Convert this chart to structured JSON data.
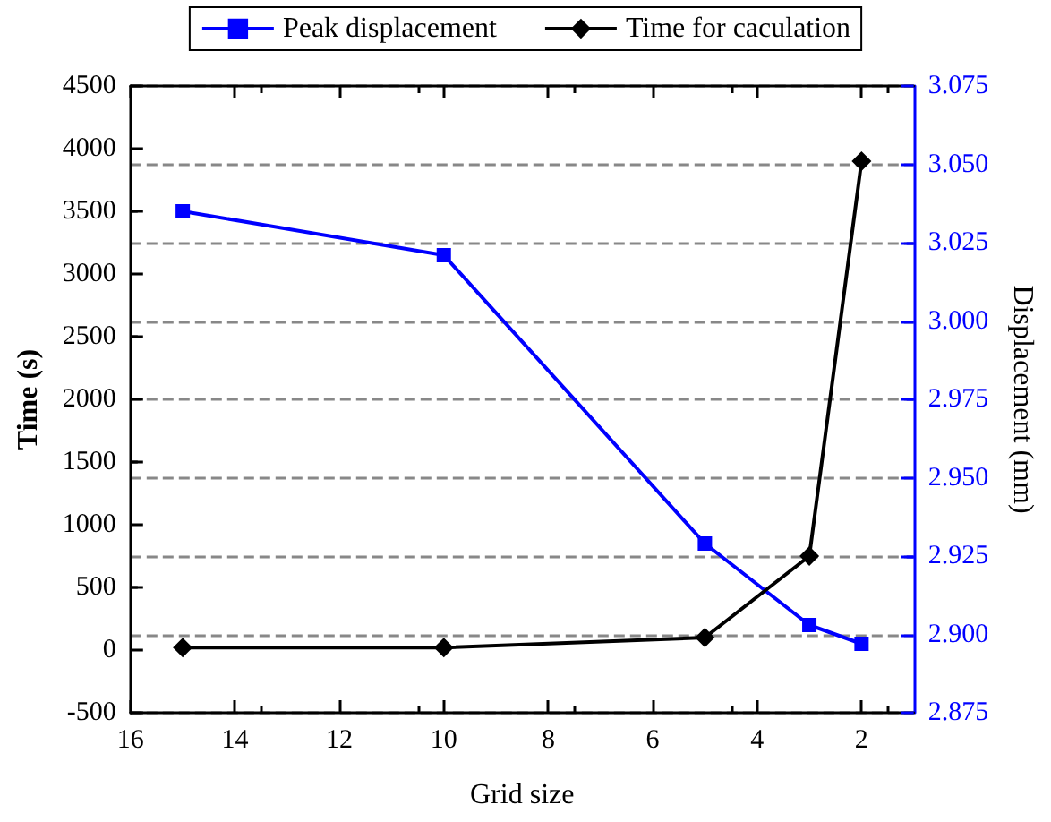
{
  "chart_data": {
    "type": "line",
    "xlabel": "Grid size",
    "ylabel": "Time (s)",
    "y2label": "Displacement (mm)",
    "x": [
      15,
      10,
      5,
      3,
      2
    ],
    "series": [
      {
        "name": "Peak displacement",
        "color": "#0000ff",
        "axis": "y2",
        "marker": "square",
        "values": [
          3.035,
          3.021,
          2.929,
          2.903,
          2.897
        ]
      },
      {
        "name": "Time for caculation",
        "color": "#000000",
        "marker": "diamond",
        "values": [
          20,
          20,
          100,
          750,
          3900
        ]
      }
    ],
    "xlim": [
      16,
      1
    ],
    "xticks": [
      16,
      14,
      12,
      10,
      8,
      6,
      4,
      2
    ],
    "ylim": [
      -500,
      4500
    ],
    "yticks": [
      -500,
      0,
      500,
      1000,
      1500,
      2000,
      2500,
      3000,
      3500,
      4000,
      4500
    ],
    "y2lim": [
      2.875,
      3.075
    ],
    "y2ticks": [
      {
        "value": 2.875,
        "label": "2.875"
      },
      {
        "value": 2.9,
        "label": "2.900"
      },
      {
        "value": 2.925,
        "label": "2.925"
      },
      {
        "value": 2.95,
        "label": "2.950"
      },
      {
        "value": 2.975,
        "label": "2.975"
      },
      {
        "value": 3.0,
        "label": "3.000"
      },
      {
        "value": 3.025,
        "label": "3.025"
      },
      {
        "value": 3.05,
        "label": "3.050"
      },
      {
        "value": 3.075,
        "label": "3.075"
      }
    ],
    "grid": "y2",
    "legend": "top",
    "line_style": "solid"
  }
}
